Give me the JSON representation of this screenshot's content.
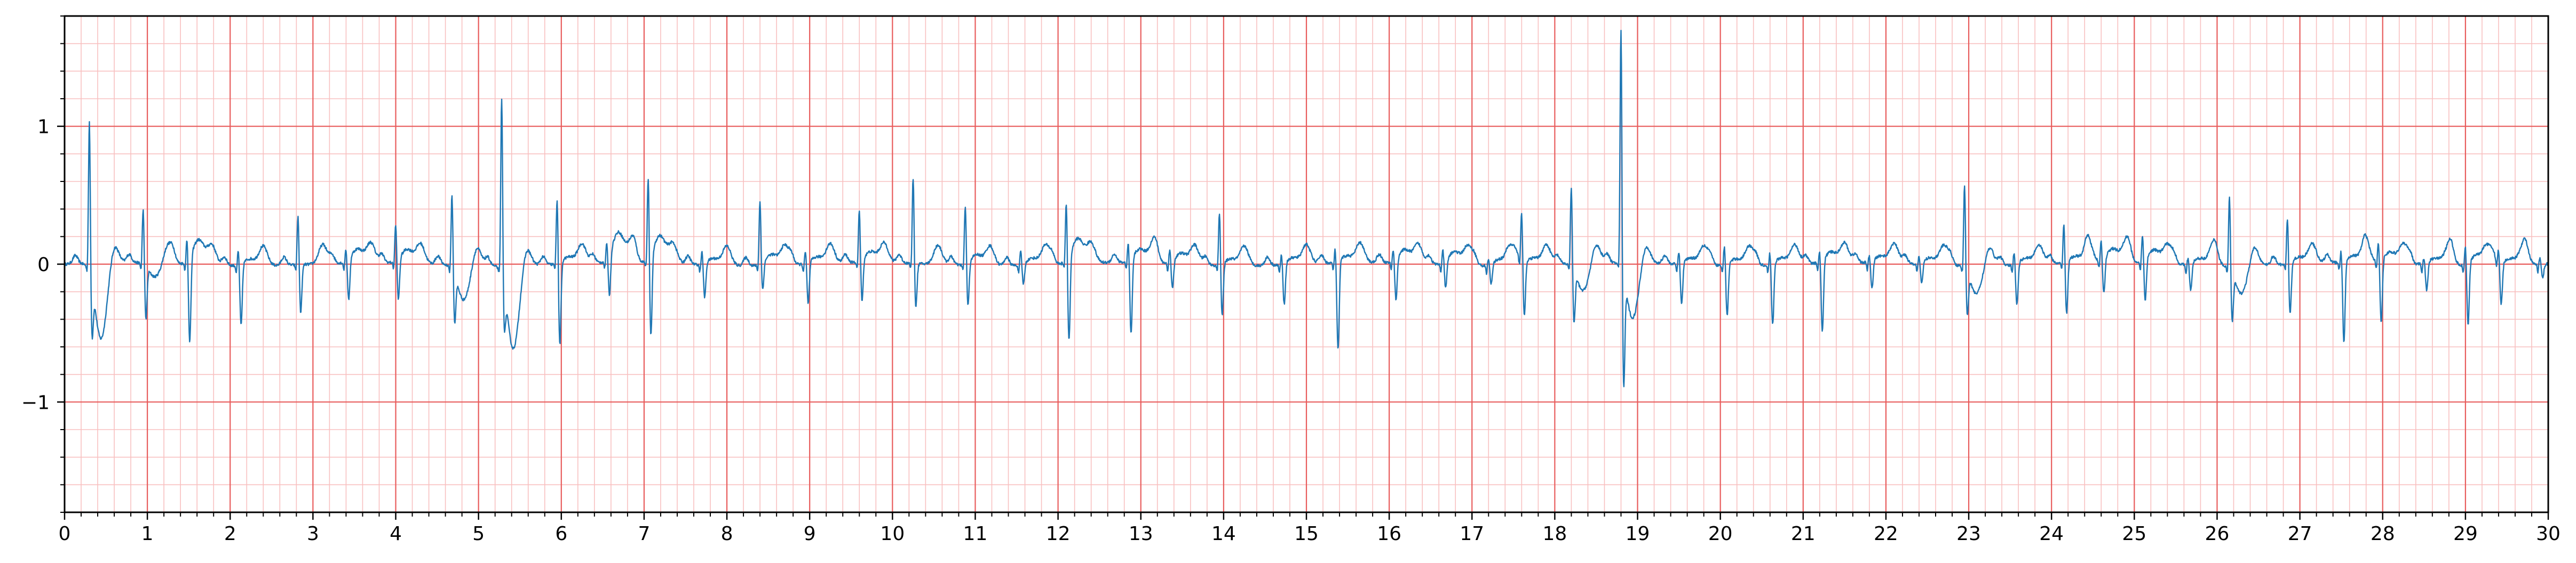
{
  "chart_data": {
    "type": "line",
    "title": "",
    "xlabel": "",
    "ylabel": "",
    "xlim": [
      0,
      30
    ],
    "ylim": [
      -1.8,
      1.8
    ],
    "x_ticks": [
      "0",
      "1",
      "2",
      "3",
      "4",
      "5",
      "6",
      "7",
      "8",
      "9",
      "10",
      "11",
      "12",
      "13",
      "14",
      "15",
      "16",
      "17",
      "18",
      "19",
      "20",
      "21",
      "22",
      "23",
      "24",
      "25",
      "26",
      "27",
      "28",
      "29",
      "30"
    ],
    "y_ticks": [
      {
        "value": 1,
        "label": "1"
      },
      {
        "value": 0,
        "label": "0"
      },
      {
        "value": -1,
        "label": "−1"
      }
    ],
    "grid": {
      "major_x": 1,
      "major_y": 1,
      "minor_x": 0.2,
      "minor_y": 0.2
    },
    "colors": {
      "major_grid": "#e85c5c",
      "minor_grid": "#f8c0c0",
      "trace": "#1f77b4",
      "axis": "#000000"
    },
    "series": [
      {
        "beats": [
          {
            "t": 0.3,
            "amp": 1.12,
            "s": -0.38,
            "st": -0.55
          },
          {
            "t": 0.95,
            "amp": 0.42,
            "s": -0.38,
            "st": -0.1
          },
          {
            "t": 1.48,
            "amp": 0.18,
            "s": -0.62,
            "st": 0.18
          },
          {
            "t": 2.1,
            "amp": 0.12,
            "s": -0.45,
            "st": 0.05
          },
          {
            "t": 2.82,
            "amp": 0.37,
            "s": -0.35,
            "st": 0.0
          },
          {
            "t": 3.4,
            "amp": 0.1,
            "s": -0.3,
            "st": 0.1
          },
          {
            "t": 4.0,
            "amp": 0.28,
            "s": -0.3,
            "st": 0.1
          },
          {
            "t": 4.68,
            "amp": 0.56,
            "s": -0.35,
            "st": -0.25
          },
          {
            "t": 5.28,
            "amp": 1.32,
            "s": -0.3,
            "st": -0.6
          },
          {
            "t": 5.95,
            "amp": 0.5,
            "s": -0.6,
            "st": 0.05
          },
          {
            "t": 6.55,
            "amp": 0.12,
            "s": -0.3,
            "st": 0.22
          },
          {
            "t": 7.05,
            "amp": 0.62,
            "s": -0.6,
            "st": 0.2
          },
          {
            "t": 7.7,
            "amp": 0.1,
            "s": -0.25,
            "st": 0.05
          },
          {
            "t": 8.4,
            "amp": 0.47,
            "s": -0.2,
            "st": 0.08
          },
          {
            "t": 8.95,
            "amp": 0.1,
            "s": -0.3,
            "st": 0.05
          },
          {
            "t": 9.6,
            "amp": 0.38,
            "s": -0.3,
            "st": 0.08
          },
          {
            "t": 10.25,
            "amp": 0.64,
            "s": -0.32,
            "st": 0.0
          },
          {
            "t": 10.88,
            "amp": 0.44,
            "s": -0.32,
            "st": 0.08
          },
          {
            "t": 11.55,
            "amp": 0.1,
            "s": -0.15,
            "st": 0.05
          },
          {
            "t": 12.1,
            "amp": 0.45,
            "s": -0.62,
            "st": 0.18
          },
          {
            "t": 12.85,
            "amp": 0.15,
            "s": -0.55,
            "st": 0.1
          },
          {
            "t": 13.35,
            "amp": 0.1,
            "s": -0.2,
            "st": 0.08
          },
          {
            "t": 13.95,
            "amp": 0.4,
            "s": -0.38,
            "st": 0.05
          },
          {
            "t": 14.7,
            "amp": 0.08,
            "s": -0.3,
            "st": 0.05
          },
          {
            "t": 15.35,
            "amp": 0.12,
            "s": -0.65,
            "st": 0.05
          },
          {
            "t": 16.05,
            "amp": 0.1,
            "s": -0.3,
            "st": 0.1
          },
          {
            "t": 16.65,
            "amp": 0.1,
            "s": -0.2,
            "st": 0.1
          },
          {
            "t": 17.2,
            "amp": 0.05,
            "s": -0.15,
            "st": 0.05
          },
          {
            "t": 17.6,
            "amp": 0.38,
            "s": -0.38,
            "st": 0.05
          },
          {
            "t": 18.2,
            "amp": 0.6,
            "s": -0.38,
            "st": -0.2
          },
          {
            "t": 18.8,
            "amp": 1.8,
            "s": -0.8,
            "st": -0.4
          },
          {
            "t": 19.5,
            "amp": 0.1,
            "s": -0.3,
            "st": 0.05
          },
          {
            "t": 20.05,
            "amp": 0.15,
            "s": -0.38,
            "st": 0.05
          },
          {
            "t": 20.6,
            "amp": 0.1,
            "s": -0.45,
            "st": 0.05
          },
          {
            "t": 21.2,
            "amp": 0.1,
            "s": -0.52,
            "st": 0.08
          },
          {
            "t": 21.8,
            "amp": 0.05,
            "s": -0.2,
            "st": 0.05
          },
          {
            "t": 22.4,
            "amp": 0.05,
            "s": -0.15,
            "st": 0.05
          },
          {
            "t": 22.95,
            "amp": 0.62,
            "s": -0.3,
            "st": -0.2
          },
          {
            "t": 23.55,
            "amp": 0.1,
            "s": -0.3,
            "st": 0.05
          },
          {
            "t": 24.15,
            "amp": 0.3,
            "s": -0.38,
            "st": 0.05
          },
          {
            "t": 24.6,
            "amp": 0.15,
            "s": -0.25,
            "st": 0.1
          },
          {
            "t": 25.1,
            "amp": 0.2,
            "s": -0.3,
            "st": 0.1
          },
          {
            "t": 25.65,
            "amp": 0.05,
            "s": -0.2,
            "st": 0.05
          },
          {
            "t": 26.15,
            "amp": 0.55,
            "s": -0.35,
            "st": -0.2
          },
          {
            "t": 26.85,
            "amp": 0.35,
            "s": -0.38,
            "st": 0.05
          },
          {
            "t": 27.5,
            "amp": 0.1,
            "s": -0.6,
            "st": 0.05
          },
          {
            "t": 27.95,
            "amp": 0.15,
            "s": -0.45,
            "st": 0.08
          },
          {
            "t": 28.5,
            "amp": 0.05,
            "s": -0.2,
            "st": 0.05
          },
          {
            "t": 29.0,
            "amp": 0.15,
            "s": -0.45,
            "st": 0.08
          },
          {
            "t": 29.4,
            "amp": 0.1,
            "s": -0.3,
            "st": 0.05
          },
          {
            "t": 29.9,
            "amp": 0.05,
            "s": -0.1,
            "st": 0.0
          }
        ]
      }
    ]
  }
}
